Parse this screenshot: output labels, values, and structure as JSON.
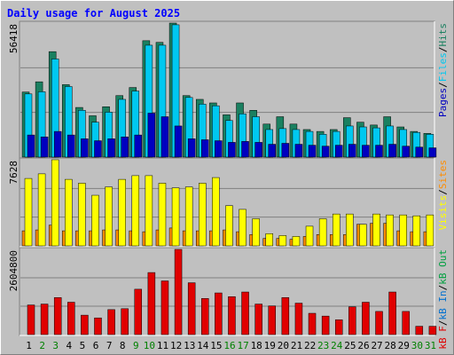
{
  "title": "Daily usage for August 2025",
  "legend_separator": "/",
  "chart_data": [
    {
      "type": "bar",
      "ylim": [
        0,
        56418
      ],
      "yticks": [
        56418
      ],
      "series": [
        {
          "name": "Pages",
          "color": "#0000c0",
          "values": [
            9300,
            8500,
            10800,
            9300,
            7700,
            6900,
            7700,
            8500,
            9300,
            18500,
            17000,
            13100,
            7700,
            7300,
            6900,
            6200,
            6600,
            6200,
            5400,
            5800,
            5400,
            5000,
            4600,
            5000,
            5400,
            5000,
            5000,
            5400,
            4600,
            4200,
            3900
          ]
        },
        {
          "name": "Files",
          "color": "#00c8f0",
          "values": [
            26600,
            27500,
            41300,
            29700,
            19700,
            14700,
            18900,
            24300,
            27800,
            47100,
            47100,
            55700,
            25100,
            22300,
            21600,
            15400,
            18200,
            17000,
            11600,
            12000,
            11600,
            10800,
            9600,
            10800,
            13100,
            12700,
            12300,
            13100,
            11600,
            10400,
            9600
          ]
        },
        {
          "name": "Hits",
          "color": "#1a8060",
          "values": [
            27400,
            31700,
            44400,
            30500,
            20900,
            17400,
            21200,
            25900,
            29300,
            49000,
            48300,
            56418,
            25900,
            24300,
            22800,
            17800,
            22800,
            19700,
            13900,
            17000,
            13900,
            11600,
            10800,
            11600,
            16600,
            14700,
            13500,
            17000,
            12700,
            10800,
            10000
          ]
        }
      ]
    },
    {
      "type": "bar",
      "ylim": [
        0,
        7628
      ],
      "yticks": [
        7628
      ],
      "series": [
        {
          "name": "Visits",
          "color": "#ffff00",
          "values": [
            5970,
            6380,
            7628,
            5890,
            5550,
            4480,
            5220,
            5890,
            6220,
            6220,
            5550,
            5140,
            5220,
            5550,
            6050,
            3560,
            3230,
            2400,
            1080,
            910,
            830,
            1740,
            2400,
            2820,
            2820,
            1910,
            2820,
            2740,
            2740,
            2660,
            2740
          ]
        },
        {
          "name": "Sites",
          "color": "#ff8c00",
          "values": [
            1330,
            1410,
            1830,
            1330,
            1330,
            1330,
            1410,
            1410,
            1330,
            1250,
            1410,
            1580,
            1330,
            1330,
            1330,
            1410,
            1250,
            1000,
            660,
            660,
            580,
            830,
            1000,
            1000,
            1000,
            1910,
            2000,
            2000,
            1330,
            1250,
            1250
          ]
        }
      ]
    },
    {
      "type": "bar",
      "ylim": [
        0,
        2604800
      ],
      "yticks": [
        2604800
      ],
      "categories": [
        "1",
        "2",
        "3",
        "4",
        "5",
        "6",
        "7",
        "8",
        "9",
        "10",
        "11",
        "12",
        "13",
        "14",
        "15",
        "16",
        "17",
        "18",
        "19",
        "20",
        "21",
        "22",
        "23",
        "24",
        "25",
        "26",
        "27",
        "28",
        "29",
        "30",
        "31"
      ],
      "category_colors": [
        "#000000",
        "#008000",
        "#008000",
        "#000000",
        "#000000",
        "#000000",
        "#000000",
        "#000000",
        "#008000",
        "#008000",
        "#000000",
        "#000000",
        "#000000",
        "#000000",
        "#000000",
        "#008000",
        "#008000",
        "#000000",
        "#000000",
        "#000000",
        "#000000",
        "#000000",
        "#008000",
        "#008000",
        "#000000",
        "#000000",
        "#000000",
        "#000000",
        "#000000",
        "#008000",
        "#008000"
      ],
      "series": [
        {
          "name": "kB F",
          "color": "#e00000",
          "values": [
            906000,
            934000,
            1132000,
            990000,
            594000,
            510000,
            764000,
            792000,
            1387000,
            1897000,
            1641000,
            2604800,
            1585000,
            1104000,
            1274000,
            1160000,
            1302000,
            934000,
            877000,
            1132000,
            962000,
            651000,
            566000,
            453000,
            849000,
            990000,
            708000,
            1302000,
            708000,
            255000,
            255000
          ]
        },
        {
          "name": "kB In",
          "color": "#0070d0",
          "values": [
            0,
            0,
            0,
            0,
            0,
            0,
            0,
            0,
            0,
            0,
            0,
            0,
            0,
            0,
            0,
            0,
            0,
            0,
            0,
            0,
            0,
            0,
            0,
            0,
            0,
            0,
            0,
            0,
            0,
            0,
            0
          ]
        },
        {
          "name": "kB Out",
          "color": "#00a040",
          "values": [
            0,
            0,
            0,
            0,
            0,
            0,
            0,
            0,
            0,
            0,
            0,
            0,
            0,
            0,
            0,
            0,
            0,
            0,
            0,
            0,
            0,
            0,
            0,
            0,
            0,
            0,
            0,
            0,
            0,
            0,
            0
          ]
        }
      ]
    }
  ]
}
